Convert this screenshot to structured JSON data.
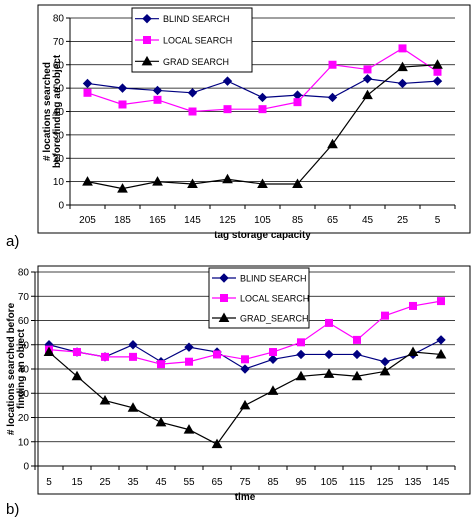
{
  "chart_data": [
    {
      "panel_label": "a)",
      "type": "line",
      "title": "",
      "xlabel": "tag storage capacity",
      "ylabel": [
        "# locations searched",
        "before finding an object"
      ],
      "ylim": [
        0,
        80
      ],
      "ytick_step": 10,
      "grid": "horizontal",
      "legend_position": "top-center",
      "categories": [
        "205",
        "185",
        "165",
        "145",
        "125",
        "105",
        "85",
        "65",
        "45",
        "25",
        "5"
      ],
      "series": [
        {
          "name": "BLIND SEARCH",
          "marker": "diamond",
          "color": "#000080",
          "values": [
            52,
            50,
            49,
            48,
            53,
            46,
            47,
            46,
            54,
            52,
            53
          ]
        },
        {
          "name": "LOCAL SEARCH",
          "marker": "square",
          "color": "#ff00ff",
          "values": [
            48,
            43,
            45,
            40,
            41,
            41,
            44,
            60,
            58,
            67,
            57
          ]
        },
        {
          "name": "GRAD SEARCH",
          "marker": "triangle",
          "color": "#000000",
          "values": [
            10,
            7,
            10,
            9,
            11,
            9,
            9,
            26,
            47,
            59,
            60
          ]
        }
      ]
    },
    {
      "panel_label": "b)",
      "type": "line",
      "title": "",
      "xlabel": "time",
      "ylabel": [
        "# locations searched before",
        "finding an object"
      ],
      "ylim": [
        0,
        80
      ],
      "ytick_step": 10,
      "grid": "horizontal",
      "legend_position": "top-center",
      "categories": [
        "5",
        "15",
        "25",
        "35",
        "45",
        "55",
        "65",
        "75",
        "85",
        "95",
        "105",
        "115",
        "125",
        "135",
        "145"
      ],
      "series": [
        {
          "name": "BLIND SEARCH",
          "marker": "diamond",
          "color": "#000080",
          "values": [
            50,
            47,
            45,
            50,
            43,
            49,
            47,
            40,
            44,
            46,
            46,
            46,
            43,
            46,
            52
          ]
        },
        {
          "name": "LOCAL SEARCH",
          "marker": "square",
          "color": "#ff00ff",
          "values": [
            48,
            47,
            45,
            45,
            42,
            43,
            46,
            44,
            47,
            51,
            59,
            52,
            62,
            66,
            68
          ]
        },
        {
          "name": "GRAD_SEARCH",
          "marker": "triangle",
          "color": "#000000",
          "values": [
            47,
            37,
            27,
            24,
            18,
            15,
            9,
            25,
            31,
            37,
            38,
            37,
            39,
            47,
            46
          ]
        }
      ]
    }
  ]
}
